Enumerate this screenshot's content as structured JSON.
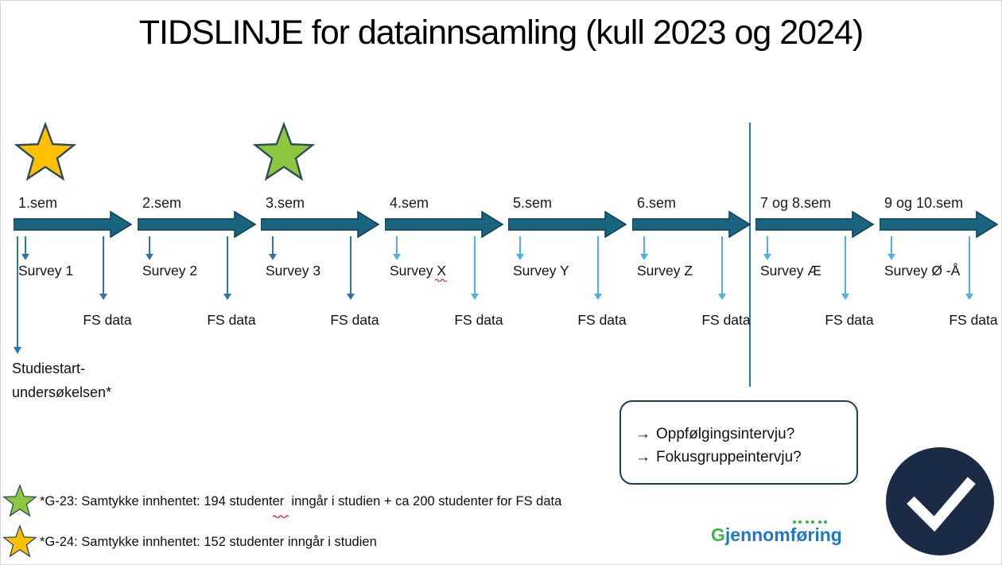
{
  "title": "TIDSLINJE for datainnsamling (kull 2023 og 2024)",
  "timeline": {
    "segments": [
      {
        "sem": "1.sem",
        "survey": "Survey 1",
        "fs": "FS data"
      },
      {
        "sem": "2.sem",
        "survey": "Survey 2",
        "fs": "FS data"
      },
      {
        "sem": "3.sem",
        "survey": "Survey 3",
        "fs": "FS data"
      },
      {
        "sem": "4.sem",
        "survey": "Survey X",
        "fs": "FS data"
      },
      {
        "sem": "5.sem",
        "survey": "Survey Y",
        "fs": "FS data"
      },
      {
        "sem": "6.sem",
        "survey": "Survey Z",
        "fs": "FS data"
      },
      {
        "sem": "7 og 8.sem",
        "survey": "Survey Æ",
        "fs": "FS data"
      },
      {
        "sem": "9 og 10.sem",
        "survey": "Survey Ø -Å",
        "fs": "FS data"
      }
    ],
    "studiestart_line1": "Studiestart-",
    "studiestart_line2": "undersøkelsen*"
  },
  "callout": {
    "arrow_glyph": "→",
    "line1": "Oppfølgingsintervju?",
    "line2": "Fokusgruppeintervju?"
  },
  "notes": [
    {
      "star": "green-star-icon",
      "text": "*G-23: Samtykke innhentet: 194 studenter  inngår i studien + ca 200 studenter for FS data"
    },
    {
      "star": "yellow-star-icon",
      "text": "*G-24: Samtykke innhentet: 152 studenter inngår i studien"
    }
  ],
  "logo": {
    "g": "G",
    "rest": "jennomføring"
  },
  "icons": {
    "milestone_start": "yellow-star",
    "milestone_consent": "green-star",
    "completion": "checkmark-in-circle"
  },
  "colors": {
    "timeline_arrow": "#19647F",
    "timeline_arrow_border": "#0F3D52",
    "dark_arrow": "#2E74A6",
    "light_arrow": "#4FB0E8",
    "star_yellow": "#FFC000",
    "star_green": "#8DC63F",
    "star_outline": "#2B4A5C",
    "circle_navy": "#1C2B45",
    "logo_green": "#3DB54A",
    "logo_blue": "#1E79C0",
    "callout_border": "#1D3C57"
  }
}
